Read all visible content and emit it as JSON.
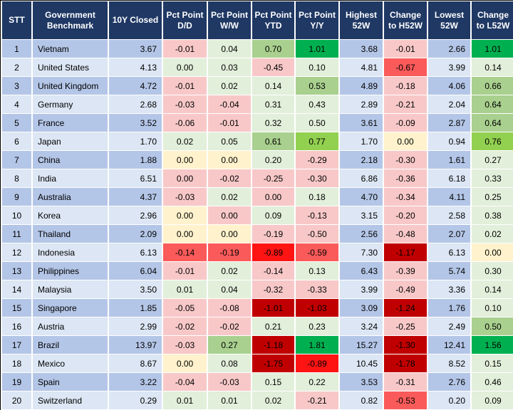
{
  "colors": {
    "header_bg": "#1F3864",
    "header_text": "#FFFFFF",
    "row_odd": "#B4C6E7",
    "row_even": "#DCE6F4",
    "grid": "#FFFFFF",
    "outer_border": "#000000",
    "pink": "#F8C8C8",
    "light_green": "#E2EFDA",
    "med_green": "#A9D08E",
    "bright_green": "#92D050",
    "strong_green": "#00B050",
    "yellow": "#FFF2CC",
    "med_red": "#FB5A5A",
    "bright_red": "#FF1414",
    "dark_red": "#C00000"
  },
  "chart_data": {
    "type": "table",
    "columns": [
      {
        "id": "stt",
        "label": "STT"
      },
      {
        "id": "country",
        "label": "Government Benchmark"
      },
      {
        "id": "closed",
        "label": "10Y Closed"
      },
      {
        "id": "dd",
        "label": "Pct Point D/D"
      },
      {
        "id": "ww",
        "label": "Pct Point W/W"
      },
      {
        "id": "ytd",
        "label": "Pct Point YTD"
      },
      {
        "id": "yy",
        "label": "Pct Point Y/Y"
      },
      {
        "id": "high",
        "label": "Highest 52W"
      },
      {
        "id": "chg_h",
        "label": "Change to H52W"
      },
      {
        "id": "low",
        "label": "Lowest 52W"
      },
      {
        "id": "chg_l",
        "label": "Change to L52W"
      }
    ],
    "rows": [
      {
        "stt": "1",
        "country": "Vietnam",
        "closed": "3.67",
        "dd": "-0.01",
        "dd_c": "pink",
        "ww": "0.04",
        "ww_c": "light_green",
        "ytd": "0.70",
        "ytd_c": "med_green",
        "yy": "1.01",
        "yy_c": "strong_green",
        "high": "3.68",
        "chg_h": "-0.01",
        "chg_h_c": "pink",
        "low": "2.66",
        "chg_l": "1.01",
        "chg_l_c": "strong_green"
      },
      {
        "stt": "2",
        "country": "United States",
        "closed": "4.13",
        "dd": "0.00",
        "dd_c": "light_green",
        "ww": "0.03",
        "ww_c": "light_green",
        "ytd": "-0.45",
        "ytd_c": "pink",
        "yy": "0.10",
        "yy_c": "light_green",
        "high": "4.81",
        "chg_h": "-0.67",
        "chg_h_c": "med_red",
        "low": "3.99",
        "chg_l": "0.14",
        "chg_l_c": "light_green"
      },
      {
        "stt": "3",
        "country": "United Kingdom",
        "closed": "4.72",
        "dd": "-0.01",
        "dd_c": "pink",
        "ww": "0.02",
        "ww_c": "light_green",
        "ytd": "0.14",
        "ytd_c": "light_green",
        "yy": "0.53",
        "yy_c": "med_green",
        "high": "4.89",
        "chg_h": "-0.18",
        "chg_h_c": "pink",
        "low": "4.06",
        "chg_l": "0.66",
        "chg_l_c": "med_green"
      },
      {
        "stt": "4",
        "country": "Germany",
        "closed": "2.68",
        "dd": "-0.03",
        "dd_c": "pink",
        "ww": "-0.04",
        "ww_c": "pink",
        "ytd": "0.31",
        "ytd_c": "light_green",
        "yy": "0.43",
        "yy_c": "light_green",
        "high": "2.89",
        "chg_h": "-0.21",
        "chg_h_c": "pink",
        "low": "2.04",
        "chg_l": "0.64",
        "chg_l_c": "med_green"
      },
      {
        "stt": "5",
        "country": "France",
        "closed": "3.52",
        "dd": "-0.06",
        "dd_c": "pink",
        "ww": "-0.01",
        "ww_c": "pink",
        "ytd": "0.32",
        "ytd_c": "light_green",
        "yy": "0.50",
        "yy_c": "light_green",
        "high": "3.61",
        "chg_h": "-0.09",
        "chg_h_c": "pink",
        "low": "2.87",
        "chg_l": "0.64",
        "chg_l_c": "med_green"
      },
      {
        "stt": "6",
        "country": "Japan",
        "closed": "1.70",
        "dd": "0.02",
        "dd_c": "light_green",
        "ww": "0.05",
        "ww_c": "light_green",
        "ytd": "0.61",
        "ytd_c": "med_green",
        "yy": "0.77",
        "yy_c": "bright_green",
        "high": "1.70",
        "chg_h": "0.00",
        "chg_h_c": "yellow",
        "low": "0.94",
        "chg_l": "0.76",
        "chg_l_c": "bright_green"
      },
      {
        "stt": "7",
        "country": "China",
        "closed": "1.88",
        "dd": "0.00",
        "dd_c": "yellow",
        "ww": "0.00",
        "ww_c": "yellow",
        "ytd": "0.20",
        "ytd_c": "light_green",
        "yy": "-0.29",
        "yy_c": "pink",
        "high": "2.18",
        "chg_h": "-0.30",
        "chg_h_c": "pink",
        "low": "1.61",
        "chg_l": "0.27",
        "chg_l_c": "light_green"
      },
      {
        "stt": "8",
        "country": "India",
        "closed": "6.51",
        "dd": "0.00",
        "dd_c": "pink",
        "ww": "-0.02",
        "ww_c": "pink",
        "ytd": "-0.25",
        "ytd_c": "pink",
        "yy": "-0.30",
        "yy_c": "pink",
        "high": "6.86",
        "chg_h": "-0.36",
        "chg_h_c": "pink",
        "low": "6.18",
        "chg_l": "0.33",
        "chg_l_c": "light_green"
      },
      {
        "stt": "9",
        "country": "Australia",
        "closed": "4.37",
        "dd": "-0.03",
        "dd_c": "pink",
        "ww": "0.02",
        "ww_c": "light_green",
        "ytd": "0.00",
        "ytd_c": "pink",
        "yy": "0.18",
        "yy_c": "light_green",
        "high": "4.70",
        "chg_h": "-0.34",
        "chg_h_c": "pink",
        "low": "4.11",
        "chg_l": "0.25",
        "chg_l_c": "light_green"
      },
      {
        "stt": "10",
        "country": "Korea",
        "closed": "2.96",
        "dd": "0.00",
        "dd_c": "yellow",
        "ww": "0.00",
        "ww_c": "pink",
        "ytd": "0.09",
        "ytd_c": "light_green",
        "yy": "-0.13",
        "yy_c": "pink",
        "high": "3.15",
        "chg_h": "-0.20",
        "chg_h_c": "pink",
        "low": "2.58",
        "chg_l": "0.38",
        "chg_l_c": "light_green"
      },
      {
        "stt": "11",
        "country": "Thailand",
        "closed": "2.09",
        "dd": "0.00",
        "dd_c": "yellow",
        "ww": "0.00",
        "ww_c": "yellow",
        "ytd": "-0.19",
        "ytd_c": "pink",
        "yy": "-0.50",
        "yy_c": "pink",
        "high": "2.56",
        "chg_h": "-0.48",
        "chg_h_c": "pink",
        "low": "2.07",
        "chg_l": "0.02",
        "chg_l_c": "light_green"
      },
      {
        "stt": "12",
        "country": "Indonesia",
        "closed": "6.13",
        "dd": "-0.14",
        "dd_c": "med_red",
        "ww": "-0.19",
        "ww_c": "med_red",
        "ytd": "-0.89",
        "ytd_c": "bright_red",
        "yy": "-0.59",
        "yy_c": "med_red",
        "high": "7.30",
        "chg_h": "-1.17",
        "chg_h_c": "dark_red",
        "low": "6.13",
        "chg_l": "0.00",
        "chg_l_c": "yellow"
      },
      {
        "stt": "13",
        "country": "Philippines",
        "closed": "6.04",
        "dd": "-0.01",
        "dd_c": "pink",
        "ww": "0.02",
        "ww_c": "light_green",
        "ytd": "-0.14",
        "ytd_c": "pink",
        "yy": "0.13",
        "yy_c": "light_green",
        "high": "6.43",
        "chg_h": "-0.39",
        "chg_h_c": "pink",
        "low": "5.74",
        "chg_l": "0.30",
        "chg_l_c": "light_green"
      },
      {
        "stt": "14",
        "country": "Malaysia",
        "closed": "3.50",
        "dd": "0.01",
        "dd_c": "light_green",
        "ww": "0.04",
        "ww_c": "light_green",
        "ytd": "-0.32",
        "ytd_c": "pink",
        "yy": "-0.33",
        "yy_c": "pink",
        "high": "3.99",
        "chg_h": "-0.49",
        "chg_h_c": "pink",
        "low": "3.36",
        "chg_l": "0.14",
        "chg_l_c": "light_green"
      },
      {
        "stt": "15",
        "country": "Singapore",
        "closed": "1.85",
        "dd": "-0.05",
        "dd_c": "pink",
        "ww": "-0.08",
        "ww_c": "pink",
        "ytd": "-1.01",
        "ytd_c": "dark_red",
        "yy": "-1.03",
        "yy_c": "dark_red",
        "high": "3.09",
        "chg_h": "-1.24",
        "chg_h_c": "dark_red",
        "low": "1.76",
        "chg_l": "0.10",
        "chg_l_c": "light_green"
      },
      {
        "stt": "16",
        "country": "Austria",
        "closed": "2.99",
        "dd": "-0.02",
        "dd_c": "pink",
        "ww": "-0.02",
        "ww_c": "pink",
        "ytd": "0.21",
        "ytd_c": "light_green",
        "yy": "0.23",
        "yy_c": "light_green",
        "high": "3.24",
        "chg_h": "-0.25",
        "chg_h_c": "pink",
        "low": "2.49",
        "chg_l": "0.50",
        "chg_l_c": "med_green"
      },
      {
        "stt": "17",
        "country": "Brazil",
        "closed": "13.97",
        "dd": "-0.03",
        "dd_c": "pink",
        "ww": "0.27",
        "ww_c": "med_green",
        "ytd": "-1.18",
        "ytd_c": "dark_red",
        "yy": "1.81",
        "yy_c": "strong_green",
        "high": "15.27",
        "chg_h": "-1.30",
        "chg_h_c": "dark_red",
        "low": "12.41",
        "chg_l": "1.56",
        "chg_l_c": "strong_green"
      },
      {
        "stt": "18",
        "country": "Mexico",
        "closed": "8.67",
        "dd": "0.00",
        "dd_c": "yellow",
        "ww": "0.08",
        "ww_c": "light_green",
        "ytd": "-1.75",
        "ytd_c": "dark_red",
        "yy": "-0.89",
        "yy_c": "bright_red",
        "high": "10.45",
        "chg_h": "-1.78",
        "chg_h_c": "dark_red",
        "low": "8.52",
        "chg_l": "0.15",
        "chg_l_c": "light_green"
      },
      {
        "stt": "19",
        "country": "Spain",
        "closed": "3.22",
        "dd": "-0.04",
        "dd_c": "pink",
        "ww": "-0.03",
        "ww_c": "pink",
        "ytd": "0.15",
        "ytd_c": "light_green",
        "yy": "0.22",
        "yy_c": "light_green",
        "high": "3.53",
        "chg_h": "-0.31",
        "chg_h_c": "pink",
        "low": "2.76",
        "chg_l": "0.46",
        "chg_l_c": "light_green"
      },
      {
        "stt": "20",
        "country": "Switzerland",
        "closed": "0.29",
        "dd": "0.01",
        "dd_c": "light_green",
        "ww": "0.01",
        "ww_c": "light_green",
        "ytd": "0.02",
        "ytd_c": "light_green",
        "yy": "-0.21",
        "yy_c": "pink",
        "high": "0.82",
        "chg_h": "-0.53",
        "chg_h_c": "med_red",
        "low": "0.20",
        "chg_l": "0.09",
        "chg_l_c": "light_green"
      }
    ]
  }
}
